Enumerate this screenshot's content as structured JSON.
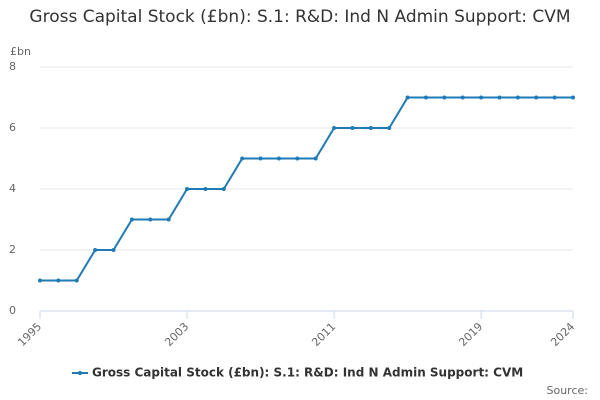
{
  "chart_data": {
    "type": "line",
    "title": "Gross Capital Stock (£bn): S.1: R&D: Ind N Admin Support: CVM",
    "y_label": "£bn",
    "source": "Source:",
    "x": [
      1995,
      1996,
      1997,
      1998,
      1999,
      2000,
      2001,
      2002,
      2003,
      2004,
      2005,
      2006,
      2007,
      2008,
      2009,
      2010,
      2011,
      2012,
      2013,
      2014,
      2015,
      2016,
      2017,
      2018,
      2019,
      2020,
      2021,
      2022,
      2023,
      2024
    ],
    "series": [
      {
        "name": "Gross Capital Stock (£bn): S.1: R&D: Ind N Admin Support: CVM",
        "color": "#1f7ab5",
        "values": [
          1,
          1,
          1,
          2,
          2,
          3,
          3,
          3,
          4,
          4,
          4,
          5,
          5,
          5,
          5,
          5,
          6,
          6,
          6,
          6,
          7,
          7,
          7,
          7,
          7,
          7,
          7,
          7,
          7,
          7
        ]
      }
    ],
    "xlim": [
      1995,
      2024
    ],
    "xticks": [
      1995,
      2003,
      2011,
      2019,
      2024
    ],
    "ylim": [
      0,
      8
    ],
    "yticks": [
      0,
      2,
      4,
      6,
      8
    ],
    "grid": true
  }
}
